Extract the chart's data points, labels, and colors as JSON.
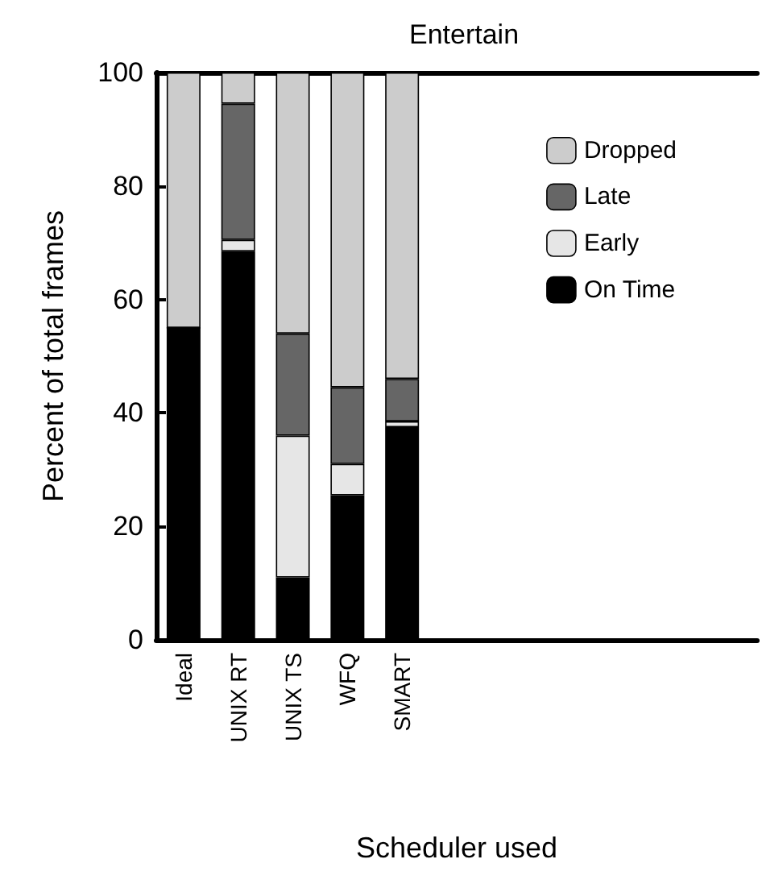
{
  "chart_data": {
    "type": "bar",
    "title": "Entertain",
    "xlabel": "Scheduler used",
    "ylabel": "Percent of total frames",
    "categories": [
      "Ideal",
      "UNIX RT",
      "UNIX TS",
      "WFQ",
      "SMART"
    ],
    "stacked": true,
    "series": [
      {
        "name": "On Time",
        "color": "#000000",
        "values": [
          55,
          68.5,
          11,
          25.5,
          37.5
        ]
      },
      {
        "name": "Early",
        "color": "#e6e6e6",
        "values": [
          0,
          2,
          25,
          5.5,
          1
        ]
      },
      {
        "name": "Late",
        "color": "#666666",
        "values": [
          0,
          24,
          18,
          13.5,
          7.5
        ]
      },
      {
        "name": "Dropped",
        "color": "#cccccc",
        "values": [
          45,
          5.5,
          46,
          55.5,
          54
        ]
      }
    ],
    "ylim": [
      0,
      100
    ],
    "yticks": [
      0,
      20,
      40,
      60,
      80,
      100
    ],
    "grid": false,
    "legend": "top right"
  }
}
